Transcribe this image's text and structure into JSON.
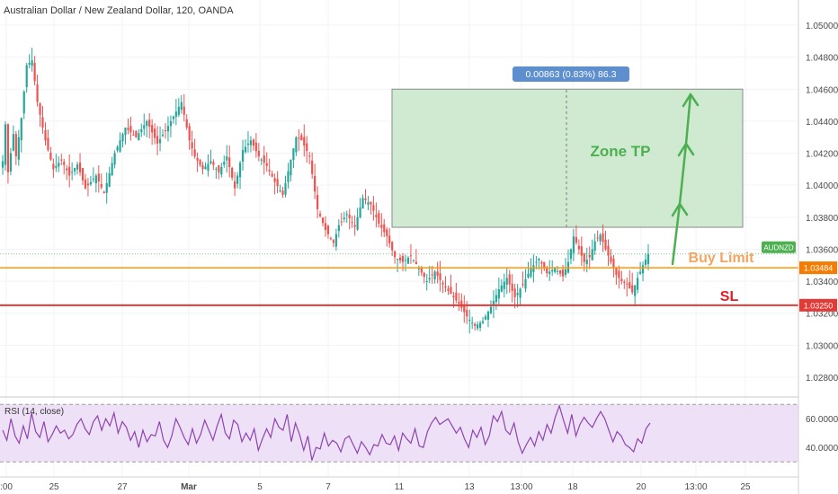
{
  "header": {
    "title": "Australian Dollar / New Zealand Dollar, 120, OANDA"
  },
  "chart_data": {
    "type": "candlestick",
    "symbol": "AUDNZD",
    "ylim": [
      1.0265,
      1.0515
    ],
    "y_ticks": [
      "1.02800",
      "1.03000",
      "1.03200",
      "1.03400",
      "1.03600",
      "1.03800",
      "1.04000",
      "1.04200",
      "1.04400",
      "1.04600",
      "1.04800",
      "1.05000"
    ],
    "x_ticks": [
      ":00",
      "25",
      "27",
      "Mar",
      "5",
      "7",
      "11",
      "13",
      "13:00",
      "18",
      "20",
      "13:00",
      "25"
    ],
    "candles": {
      "segments": [
        [
          0,
          1.0415
        ],
        [
          1,
          1.0438
        ],
        [
          2,
          1.0408
        ],
        [
          4,
          1.0432
        ],
        [
          5,
          1.0418
        ],
        [
          7,
          1.0442
        ],
        [
          9,
          1.0475
        ],
        [
          11,
          1.0478
        ],
        [
          13,
          1.0452
        ],
        [
          16,
          1.0428
        ],
        [
          19,
          1.041
        ],
        [
          22,
          1.0416
        ],
        [
          25,
          1.0406
        ],
        [
          28,
          1.0413
        ],
        [
          31,
          1.0398
        ],
        [
          35,
          1.0406
        ],
        [
          38,
          1.0395
        ],
        [
          42,
          1.042
        ],
        [
          46,
          1.0436
        ],
        [
          50,
          1.043
        ],
        [
          54,
          1.044
        ],
        [
          58,
          1.0426
        ],
        [
          62,
          1.0437
        ],
        [
          65,
          1.0446
        ],
        [
          67,
          1.0452
        ],
        [
          70,
          1.0428
        ],
        [
          72,
          1.0418
        ],
        [
          75,
          1.041
        ],
        [
          78,
          1.0415
        ],
        [
          81,
          1.0408
        ],
        [
          84,
          1.0418
        ],
        [
          87,
          1.0398
        ],
        [
          90,
          1.0422
        ],
        [
          93,
          1.0428
        ],
        [
          96,
          1.0418
        ],
        [
          99,
          1.0412
        ],
        [
          102,
          1.0402
        ],
        [
          105,
          1.0394
        ],
        [
          108,
          1.0416
        ],
        [
          110,
          1.043
        ],
        [
          112,
          1.0428
        ],
        [
          115,
          1.0418
        ],
        [
          118,
          1.0385
        ],
        [
          121,
          1.0372
        ],
        [
          124,
          1.0364
        ],
        [
          126,
          1.0375
        ],
        [
          129,
          1.0382
        ],
        [
          132,
          1.0374
        ],
        [
          135,
          1.0392
        ],
        [
          138,
          1.0388
        ],
        [
          141,
          1.0376
        ],
        [
          144,
          1.0368
        ],
        [
          147,
          1.0355
        ],
        [
          150,
          1.0352
        ],
        [
          153,
          1.0356
        ],
        [
          156,
          1.0348
        ],
        [
          159,
          1.034
        ],
        [
          162,
          1.0346
        ],
        [
          165,
          1.0338
        ],
        [
          168,
          1.0332
        ],
        [
          171,
          1.0326
        ],
        [
          174,
          1.0318
        ],
        [
          177,
          1.0312
        ],
        [
          180,
          1.0315
        ],
        [
          183,
          1.0324
        ],
        [
          186,
          1.0335
        ],
        [
          189,
          1.0342
        ],
        [
          192,
          1.033
        ],
        [
          195,
          1.0338
        ],
        [
          198,
          1.0348
        ],
        [
          201,
          1.0354
        ],
        [
          204,
          1.0345
        ],
        [
          207,
          1.0348
        ],
        [
          210,
          1.0343
        ],
        [
          212,
          1.0352
        ],
        [
          214,
          1.0368
        ],
        [
          216,
          1.036
        ],
        [
          218,
          1.0352
        ],
        [
          220,
          1.0355
        ],
        [
          222,
          1.0365
        ],
        [
          224,
          1.0369
        ],
        [
          226,
          1.036
        ],
        [
          228,
          1.0352
        ],
        [
          230,
          1.0344
        ],
        [
          232,
          1.034
        ],
        [
          234,
          1.0338
        ],
        [
          236,
          1.0333
        ],
        [
          238,
          1.0342
        ],
        [
          240,
          1.035
        ],
        [
          242,
          1.0357
        ]
      ],
      "last_close": 1.0357
    },
    "rsi": {
      "label": "RSI (14, close)",
      "ylim": [
        27,
        72
      ],
      "y_ticks": [
        "40.0000",
        "60.0000"
      ],
      "bands": [
        30,
        70
      ],
      "values": [
        52,
        45,
        60,
        48,
        43,
        55,
        46,
        64,
        51,
        47,
        58,
        44,
        49,
        55,
        50,
        52,
        46,
        49,
        56,
        60,
        53,
        49,
        58,
        62,
        52,
        60,
        55,
        64,
        50,
        58,
        54,
        45,
        51,
        40,
        52,
        44,
        49,
        48,
        58,
        45,
        40,
        48,
        60,
        54,
        47,
        42,
        53,
        43,
        49,
        59,
        52,
        45,
        55,
        63,
        50,
        46,
        59,
        56,
        44,
        50,
        45,
        53,
        38,
        46,
        53,
        47,
        60,
        54,
        52,
        63,
        44,
        57,
        49,
        38,
        48,
        31,
        40,
        39,
        50,
        41,
        45,
        43,
        37,
        46,
        48,
        42,
        36,
        44,
        40,
        35,
        42,
        41,
        49,
        43,
        42,
        48,
        38,
        50,
        46,
        43,
        53,
        41,
        40,
        51,
        57,
        61,
        56,
        58,
        60,
        55,
        50,
        54,
        46,
        40,
        52,
        47,
        54,
        42,
        48,
        62,
        58,
        65,
        52,
        49,
        57,
        44,
        36,
        42,
        47,
        41,
        51,
        45,
        56,
        50,
        61,
        69,
        59,
        50,
        63,
        48,
        56,
        61,
        57,
        54,
        60,
        65,
        60,
        52,
        44,
        51,
        48,
        42,
        40,
        37,
        46,
        43,
        53,
        57
      ]
    },
    "annotations": {
      "measure_label": "0.00863 (0.83%) 86.3",
      "zone_tp_label": "Zone TP",
      "buy_limit_label": "Buy Limit",
      "sl_label": "SL",
      "zone_top": 1.046,
      "zone_bottom": 1.03737,
      "buy_limit_price": 1.03484,
      "sl_price": 1.0325,
      "current_price_tag": "AUDNZD",
      "buy_limit_tag": "1.03484",
      "sl_tag": "1.03250"
    },
    "colors": {
      "up": "#26a69a",
      "down": "#ef5350",
      "zone_fill": "#c8e6c9",
      "zone_text": "#4caf50",
      "buy_limit": "#ff9800",
      "buy_limit_text": "#f4a460",
      "sl": "#e53935",
      "sl_text": "#e51c23",
      "measure_label_bg": "#5d8fcf",
      "current_price_bg": "#4caf50",
      "rsi_line": "#8e44ad",
      "rsi_band_fill": "#ede0f7"
    }
  }
}
